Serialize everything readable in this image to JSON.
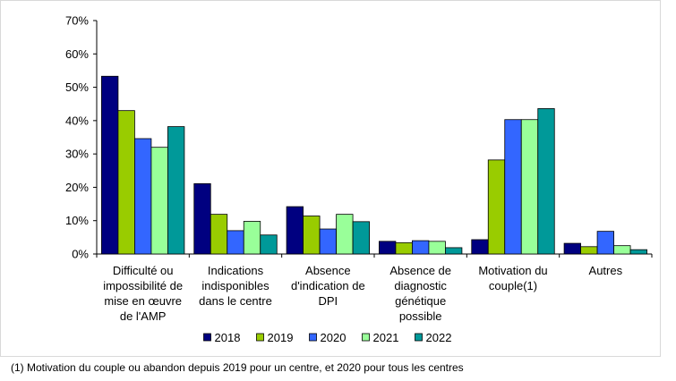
{
  "chart_data": {
    "type": "bar",
    "categories": [
      [
        "Difficulté ou",
        "impossibilité de",
        "mise en œuvre",
        "de l'AMP"
      ],
      [
        "Indications",
        "indisponibles",
        "dans le centre"
      ],
      [
        "Absence",
        "d'indication de",
        "DPI"
      ],
      [
        "Absence de",
        "diagnostic",
        "génétique",
        "possible"
      ],
      [
        "Motivation du",
        "couple(1)"
      ],
      [
        "Autres"
      ]
    ],
    "series": [
      {
        "name": "2018",
        "color": "#000080",
        "values": [
          53.3,
          21.1,
          14.2,
          3.8,
          4.3,
          3.2
        ]
      },
      {
        "name": "2019",
        "color": "#99cc00",
        "values": [
          43.0,
          11.9,
          11.4,
          3.4,
          28.2,
          2.2
        ]
      },
      {
        "name": "2020",
        "color": "#3366ff",
        "values": [
          34.6,
          7.0,
          7.5,
          4.0,
          40.3,
          6.8
        ]
      },
      {
        "name": "2021",
        "color": "#99ff99",
        "values": [
          32.0,
          9.8,
          11.9,
          3.8,
          40.3,
          2.5
        ]
      },
      {
        "name": "2022",
        "color": "#009999",
        "values": [
          38.2,
          5.7,
          9.7,
          1.9,
          43.6,
          1.3
        ]
      }
    ],
    "yticks": [
      "0%",
      "10%",
      "20%",
      "30%",
      "40%",
      "50%",
      "60%",
      "70%"
    ],
    "ylim": [
      0,
      70
    ],
    "legend_position": "bottom",
    "title": "",
    "xlabel": "",
    "ylabel": ""
  },
  "footnote": "(1) Motivation du couple ou abandon depuis 2019 pour un centre, et 2020 pour tous les centres"
}
